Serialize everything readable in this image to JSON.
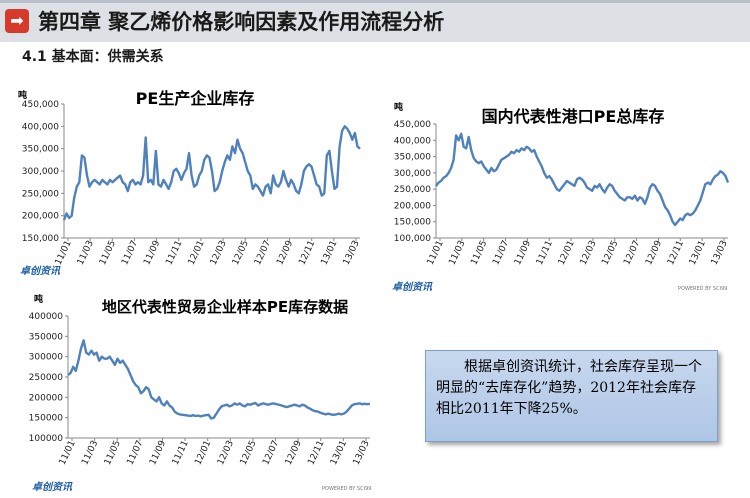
{
  "header": {
    "icon": "arrow-right-icon",
    "title": "第四章 聚乙烯价格影响因素及作用流程分析"
  },
  "section": {
    "title": "4.1 基本面：供需关系"
  },
  "note": {
    "text": "根据卓创资讯统计，社会库存呈现一个明显的“去库存化”趋势，2012年社会库存相比2011年下降25%。"
  },
  "chart_data": [
    {
      "id": "chart1",
      "type": "line",
      "title": "PE生产企业库存",
      "unit": "吨",
      "ylim": [
        150000,
        450000
      ],
      "yticks": [
        "450,000",
        "400,000",
        "350,000",
        "300,000",
        "250,000",
        "200,000",
        "150,000"
      ],
      "xticks": [
        "11/01",
        "11/03",
        "11/05",
        "11/07",
        "11/09",
        "11/11",
        "12/01",
        "12/03",
        "12/05",
        "12/07",
        "12/09",
        "12/11",
        "13/01",
        "13/03"
      ],
      "x_range": [
        0,
        116
      ],
      "values": [
        190000,
        205000,
        195000,
        200000,
        240000,
        265000,
        275000,
        335000,
        330000,
        290000,
        265000,
        275000,
        280000,
        275000,
        270000,
        280000,
        275000,
        270000,
        280000,
        275000,
        280000,
        285000,
        290000,
        275000,
        270000,
        255000,
        275000,
        280000,
        270000,
        275000,
        270000,
        290000,
        375000,
        275000,
        280000,
        270000,
        345000,
        270000,
        265000,
        280000,
        270000,
        260000,
        275000,
        300000,
        305000,
        295000,
        280000,
        295000,
        305000,
        340000,
        290000,
        265000,
        270000,
        290000,
        300000,
        325000,
        335000,
        330000,
        300000,
        255000,
        260000,
        275000,
        300000,
        320000,
        335000,
        325000,
        355000,
        340000,
        370000,
        350000,
        340000,
        320000,
        300000,
        290000,
        260000,
        270000,
        265000,
        255000,
        245000,
        265000,
        270000,
        250000,
        290000,
        270000,
        265000,
        275000,
        300000,
        280000,
        265000,
        280000,
        270000,
        255000,
        250000,
        270000,
        300000,
        310000,
        315000,
        310000,
        290000,
        270000,
        265000,
        245000,
        250000,
        335000,
        345000,
        300000,
        260000,
        265000,
        355000,
        390000,
        400000,
        395000,
        385000,
        370000,
        385000,
        355000,
        350000
      ],
      "logo": "卓创资讯"
    },
    {
      "id": "chart2",
      "type": "line",
      "title": "国内代表性港口PE总库存",
      "unit": "吨",
      "ylim": [
        100000,
        450000
      ],
      "yticks": [
        "450,000",
        "400,000",
        "350,000",
        "300,000",
        "250,000",
        "200,000",
        "150,000",
        "100,000"
      ],
      "xticks": [
        "11/01",
        "11/03",
        "11/05",
        "11/07",
        "11/09",
        "11/11",
        "12/01",
        "12/03",
        "12/05",
        "12/07",
        "12/09",
        "12/11",
        "13/01",
        "13/03"
      ],
      "x_range": [
        0,
        116
      ],
      "values": [
        260000,
        270000,
        275000,
        285000,
        290000,
        300000,
        315000,
        340000,
        415000,
        400000,
        420000,
        380000,
        375000,
        410000,
        370000,
        345000,
        335000,
        330000,
        335000,
        320000,
        310000,
        300000,
        315000,
        305000,
        310000,
        325000,
        340000,
        345000,
        350000,
        355000,
        365000,
        360000,
        370000,
        365000,
        375000,
        370000,
        380000,
        375000,
        365000,
        370000,
        350000,
        335000,
        320000,
        300000,
        285000,
        290000,
        280000,
        265000,
        250000,
        245000,
        255000,
        265000,
        275000,
        270000,
        265000,
        260000,
        280000,
        285000,
        280000,
        270000,
        255000,
        250000,
        245000,
        260000,
        255000,
        265000,
        250000,
        240000,
        255000,
        265000,
        260000,
        245000,
        235000,
        225000,
        220000,
        215000,
        225000,
        225000,
        220000,
        230000,
        215000,
        225000,
        220000,
        205000,
        225000,
        255000,
        265000,
        260000,
        245000,
        235000,
        215000,
        195000,
        185000,
        170000,
        150000,
        140000,
        150000,
        160000,
        155000,
        170000,
        175000,
        170000,
        175000,
        185000,
        200000,
        215000,
        240000,
        265000,
        270000,
        265000,
        280000,
        290000,
        295000,
        305000,
        300000,
        290000,
        270000
      ],
      "logo": "卓创资讯",
      "powered": "POWERED BY SCI99"
    },
    {
      "id": "chart3",
      "type": "line",
      "title": "地区代表性贸易企业样本PE库存数据",
      "unit": "吨",
      "ylim": [
        100000,
        400000
      ],
      "yticks": [
        "400000",
        "350000",
        "300000",
        "250000",
        "200000",
        "150000",
        "100000"
      ],
      "xticks": [
        "11/01",
        "11/03",
        "11/05",
        "11/07",
        "11/09",
        "11/11",
        "12/01",
        "12/03",
        "12/05",
        "12/07",
        "12/09",
        "12/11",
        "13/01",
        "13/03"
      ],
      "x_range": [
        0,
        116
      ],
      "values": [
        255000,
        260000,
        275000,
        265000,
        290000,
        320000,
        340000,
        310000,
        305000,
        315000,
        305000,
        310000,
        290000,
        300000,
        295000,
        295000,
        300000,
        290000,
        280000,
        295000,
        285000,
        290000,
        280000,
        270000,
        255000,
        240000,
        230000,
        225000,
        210000,
        215000,
        225000,
        220000,
        200000,
        195000,
        190000,
        200000,
        185000,
        180000,
        190000,
        180000,
        175000,
        165000,
        160000,
        158000,
        157000,
        156000,
        155000,
        154000,
        156000,
        154000,
        155000,
        153000,
        155000,
        156000,
        157000,
        148000,
        150000,
        160000,
        170000,
        178000,
        180000,
        182000,
        178000,
        180000,
        185000,
        182000,
        185000,
        180000,
        178000,
        183000,
        182000,
        184000,
        186000,
        180000,
        183000,
        185000,
        183000,
        182000,
        184000,
        185000,
        183000,
        182000,
        180000,
        178000,
        176000,
        178000,
        180000,
        182000,
        180000,
        178000,
        182000,
        180000,
        175000,
        172000,
        168000,
        166000,
        165000,
        162000,
        160000,
        158000,
        160000,
        158000,
        157000,
        158000,
        160000,
        158000,
        160000,
        165000,
        172000,
        180000,
        183000,
        184000,
        185000,
        183000,
        184000,
        183000,
        184000
      ],
      "logo": "卓创资讯",
      "powered": "POWERED BY SCI99"
    }
  ]
}
